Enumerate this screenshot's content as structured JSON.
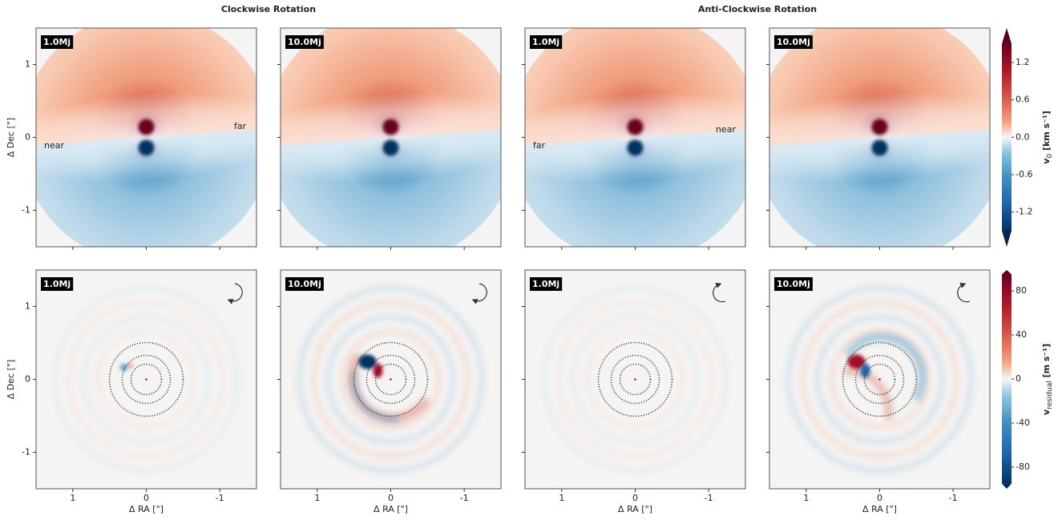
{
  "chart_data": {
    "type": "image-grid",
    "column_titles": [
      "Clockwise Rotation",
      "Anti-Clockwise Rotation"
    ],
    "xlabel": "Δ RA [\"]",
    "ylabel": "Δ Dec [\"]",
    "xlim": [
      1.5,
      -1.5
    ],
    "ylim": [
      -1.5,
      1.5
    ],
    "xticks": [
      1,
      0,
      -1
    ],
    "yticks": [
      -1,
      0,
      1
    ],
    "rows": [
      {
        "colorbar": {
          "label_main": "v",
          "label_sub": "0",
          "label_unit": " [km s⁻¹]",
          "lim": [
            -1.5,
            1.5
          ],
          "ticks": [
            1.2,
            0.6,
            {
              "value": 0,
              "label": "0.0"
            },
            -0.6,
            -1.2
          ]
        },
        "panels": [
          {
            "label": "1.0Mj",
            "annotations": [
              "near",
              "far"
            ]
          },
          {
            "label": "10.0Mj"
          },
          {
            "label": "1.0Mj",
            "annotations": [
              "far",
              "near"
            ]
          },
          {
            "label": "10.0Mj"
          }
        ]
      },
      {
        "colorbar": {
          "label_main": "v",
          "label_sub": "residual",
          "label_unit": " [m s⁻¹]",
          "lim": [
            -95,
            95
          ],
          "ticks": [
            80,
            40,
            0,
            -40,
            -80
          ]
        },
        "panels": [
          {
            "label": "1.0Mj"
          },
          {
            "label": "10.0Mj"
          },
          {
            "label": "1.0Mj"
          },
          {
            "label": "10.0Mj"
          }
        ]
      }
    ]
  }
}
